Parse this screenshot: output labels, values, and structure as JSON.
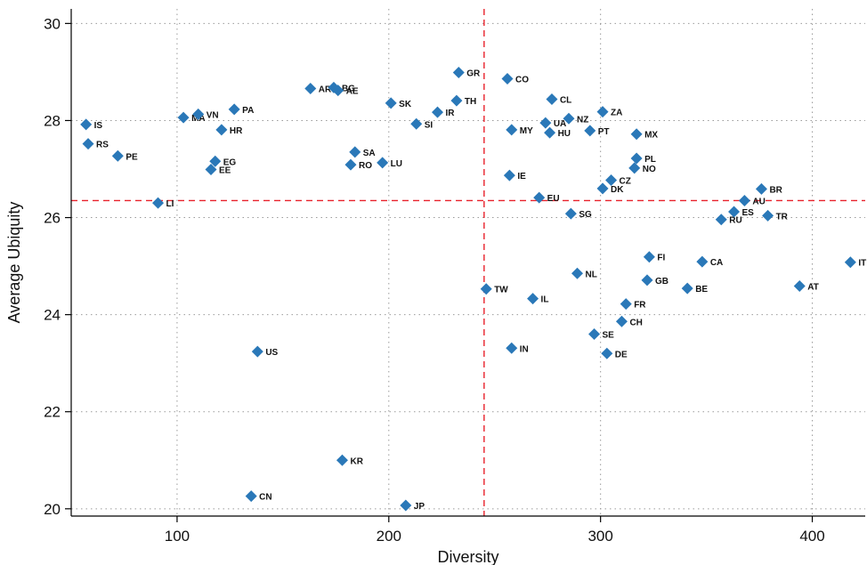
{
  "chart_data": {
    "type": "scatter",
    "title": "",
    "xlabel": "Diversity",
    "ylabel": "Average Ubiquity",
    "xlim": [
      50,
      425
    ],
    "ylim": [
      19.85,
      30.3
    ],
    "xticks": [
      100,
      200,
      300,
      400
    ],
    "yticks": [
      20,
      22,
      24,
      26,
      28,
      30
    ],
    "xtick_labels": [
      "100",
      "200",
      "300",
      "400"
    ],
    "ytick_labels": [
      "20",
      "22",
      "24",
      "26",
      "28",
      "30"
    ],
    "grid": true,
    "marker_color": "#2a78b8",
    "reference_line_color": "#e8212b",
    "reference_lines": {
      "x": 245,
      "y": 26.35
    },
    "points": [
      {
        "label": "IS",
        "x": 57,
        "y": 27.92
      },
      {
        "label": "RS",
        "x": 58,
        "y": 27.52
      },
      {
        "label": "PE",
        "x": 72,
        "y": 27.27
      },
      {
        "label": "LI",
        "x": 91,
        "y": 26.3
      },
      {
        "label": "MA",
        "x": 103,
        "y": 28.06
      },
      {
        "label": "VN",
        "x": 110,
        "y": 28.13
      },
      {
        "label": "PA",
        "x": 127,
        "y": 28.23
      },
      {
        "label": "HR",
        "x": 121,
        "y": 27.81
      },
      {
        "label": "EG",
        "x": 118,
        "y": 27.16
      },
      {
        "label": "EE",
        "x": 116,
        "y": 26.99
      },
      {
        "label": "US",
        "x": 138,
        "y": 23.24
      },
      {
        "label": "CN",
        "x": 135,
        "y": 20.26
      },
      {
        "label": "KR",
        "x": 178,
        "y": 21.0
      },
      {
        "label": "AR",
        "x": 163,
        "y": 28.66
      },
      {
        "label": "BG",
        "x": 174,
        "y": 28.68
      },
      {
        "label": "AE",
        "x": 176,
        "y": 28.62
      },
      {
        "label": "SA",
        "x": 184,
        "y": 27.35
      },
      {
        "label": "RO",
        "x": 182,
        "y": 27.09
      },
      {
        "label": "LU",
        "x": 197,
        "y": 27.13
      },
      {
        "label": "SK",
        "x": 201,
        "y": 28.36
      },
      {
        "label": "SI",
        "x": 213,
        "y": 27.93
      },
      {
        "label": "IR",
        "x": 223,
        "y": 28.17
      },
      {
        "label": "TH",
        "x": 232,
        "y": 28.41
      },
      {
        "label": "GR",
        "x": 233,
        "y": 28.99
      },
      {
        "label": "JP",
        "x": 208,
        "y": 20.07
      },
      {
        "label": "TW",
        "x": 246,
        "y": 24.53
      },
      {
        "label": "CO",
        "x": 256,
        "y": 28.86
      },
      {
        "label": "MY",
        "x": 258,
        "y": 27.81
      },
      {
        "label": "IE",
        "x": 257,
        "y": 26.87
      },
      {
        "label": "IN",
        "x": 258,
        "y": 23.31
      },
      {
        "label": "IL",
        "x": 268,
        "y": 24.33
      },
      {
        "label": "EU",
        "x": 271,
        "y": 26.41
      },
      {
        "label": "UA",
        "x": 274,
        "y": 27.95
      },
      {
        "label": "HU",
        "x": 276,
        "y": 27.75
      },
      {
        "label": "CL",
        "x": 277,
        "y": 28.44
      },
      {
        "label": "NZ",
        "x": 285,
        "y": 28.04
      },
      {
        "label": "SG",
        "x": 286,
        "y": 26.08
      },
      {
        "label": "NL",
        "x": 289,
        "y": 24.85
      },
      {
        "label": "PT",
        "x": 295,
        "y": 27.79
      },
      {
        "label": "SE",
        "x": 297,
        "y": 23.6
      },
      {
        "label": "ZA",
        "x": 301,
        "y": 28.18
      },
      {
        "label": "DK",
        "x": 301,
        "y": 26.6
      },
      {
        "label": "CZ",
        "x": 305,
        "y": 26.77
      },
      {
        "label": "DE",
        "x": 303,
        "y": 23.2
      },
      {
        "label": "CH",
        "x": 310,
        "y": 23.86
      },
      {
        "label": "FR",
        "x": 312,
        "y": 24.22
      },
      {
        "label": "MX",
        "x": 317,
        "y": 27.72
      },
      {
        "label": "PL",
        "x": 317,
        "y": 27.22
      },
      {
        "label": "NO",
        "x": 316,
        "y": 27.02
      },
      {
        "label": "FI",
        "x": 323,
        "y": 25.19
      },
      {
        "label": "GB",
        "x": 322,
        "y": 24.71
      },
      {
        "label": "BE",
        "x": 341,
        "y": 24.54
      },
      {
        "label": "CA",
        "x": 348,
        "y": 25.09
      },
      {
        "label": "RU",
        "x": 357,
        "y": 25.96
      },
      {
        "label": "ES",
        "x": 363,
        "y": 26.12
      },
      {
        "label": "AU",
        "x": 368,
        "y": 26.35
      },
      {
        "label": "BR",
        "x": 376,
        "y": 26.59
      },
      {
        "label": "TR",
        "x": 379,
        "y": 26.04
      },
      {
        "label": "AT",
        "x": 394,
        "y": 24.59
      },
      {
        "label": "IT",
        "x": 418,
        "y": 25.08
      }
    ]
  }
}
